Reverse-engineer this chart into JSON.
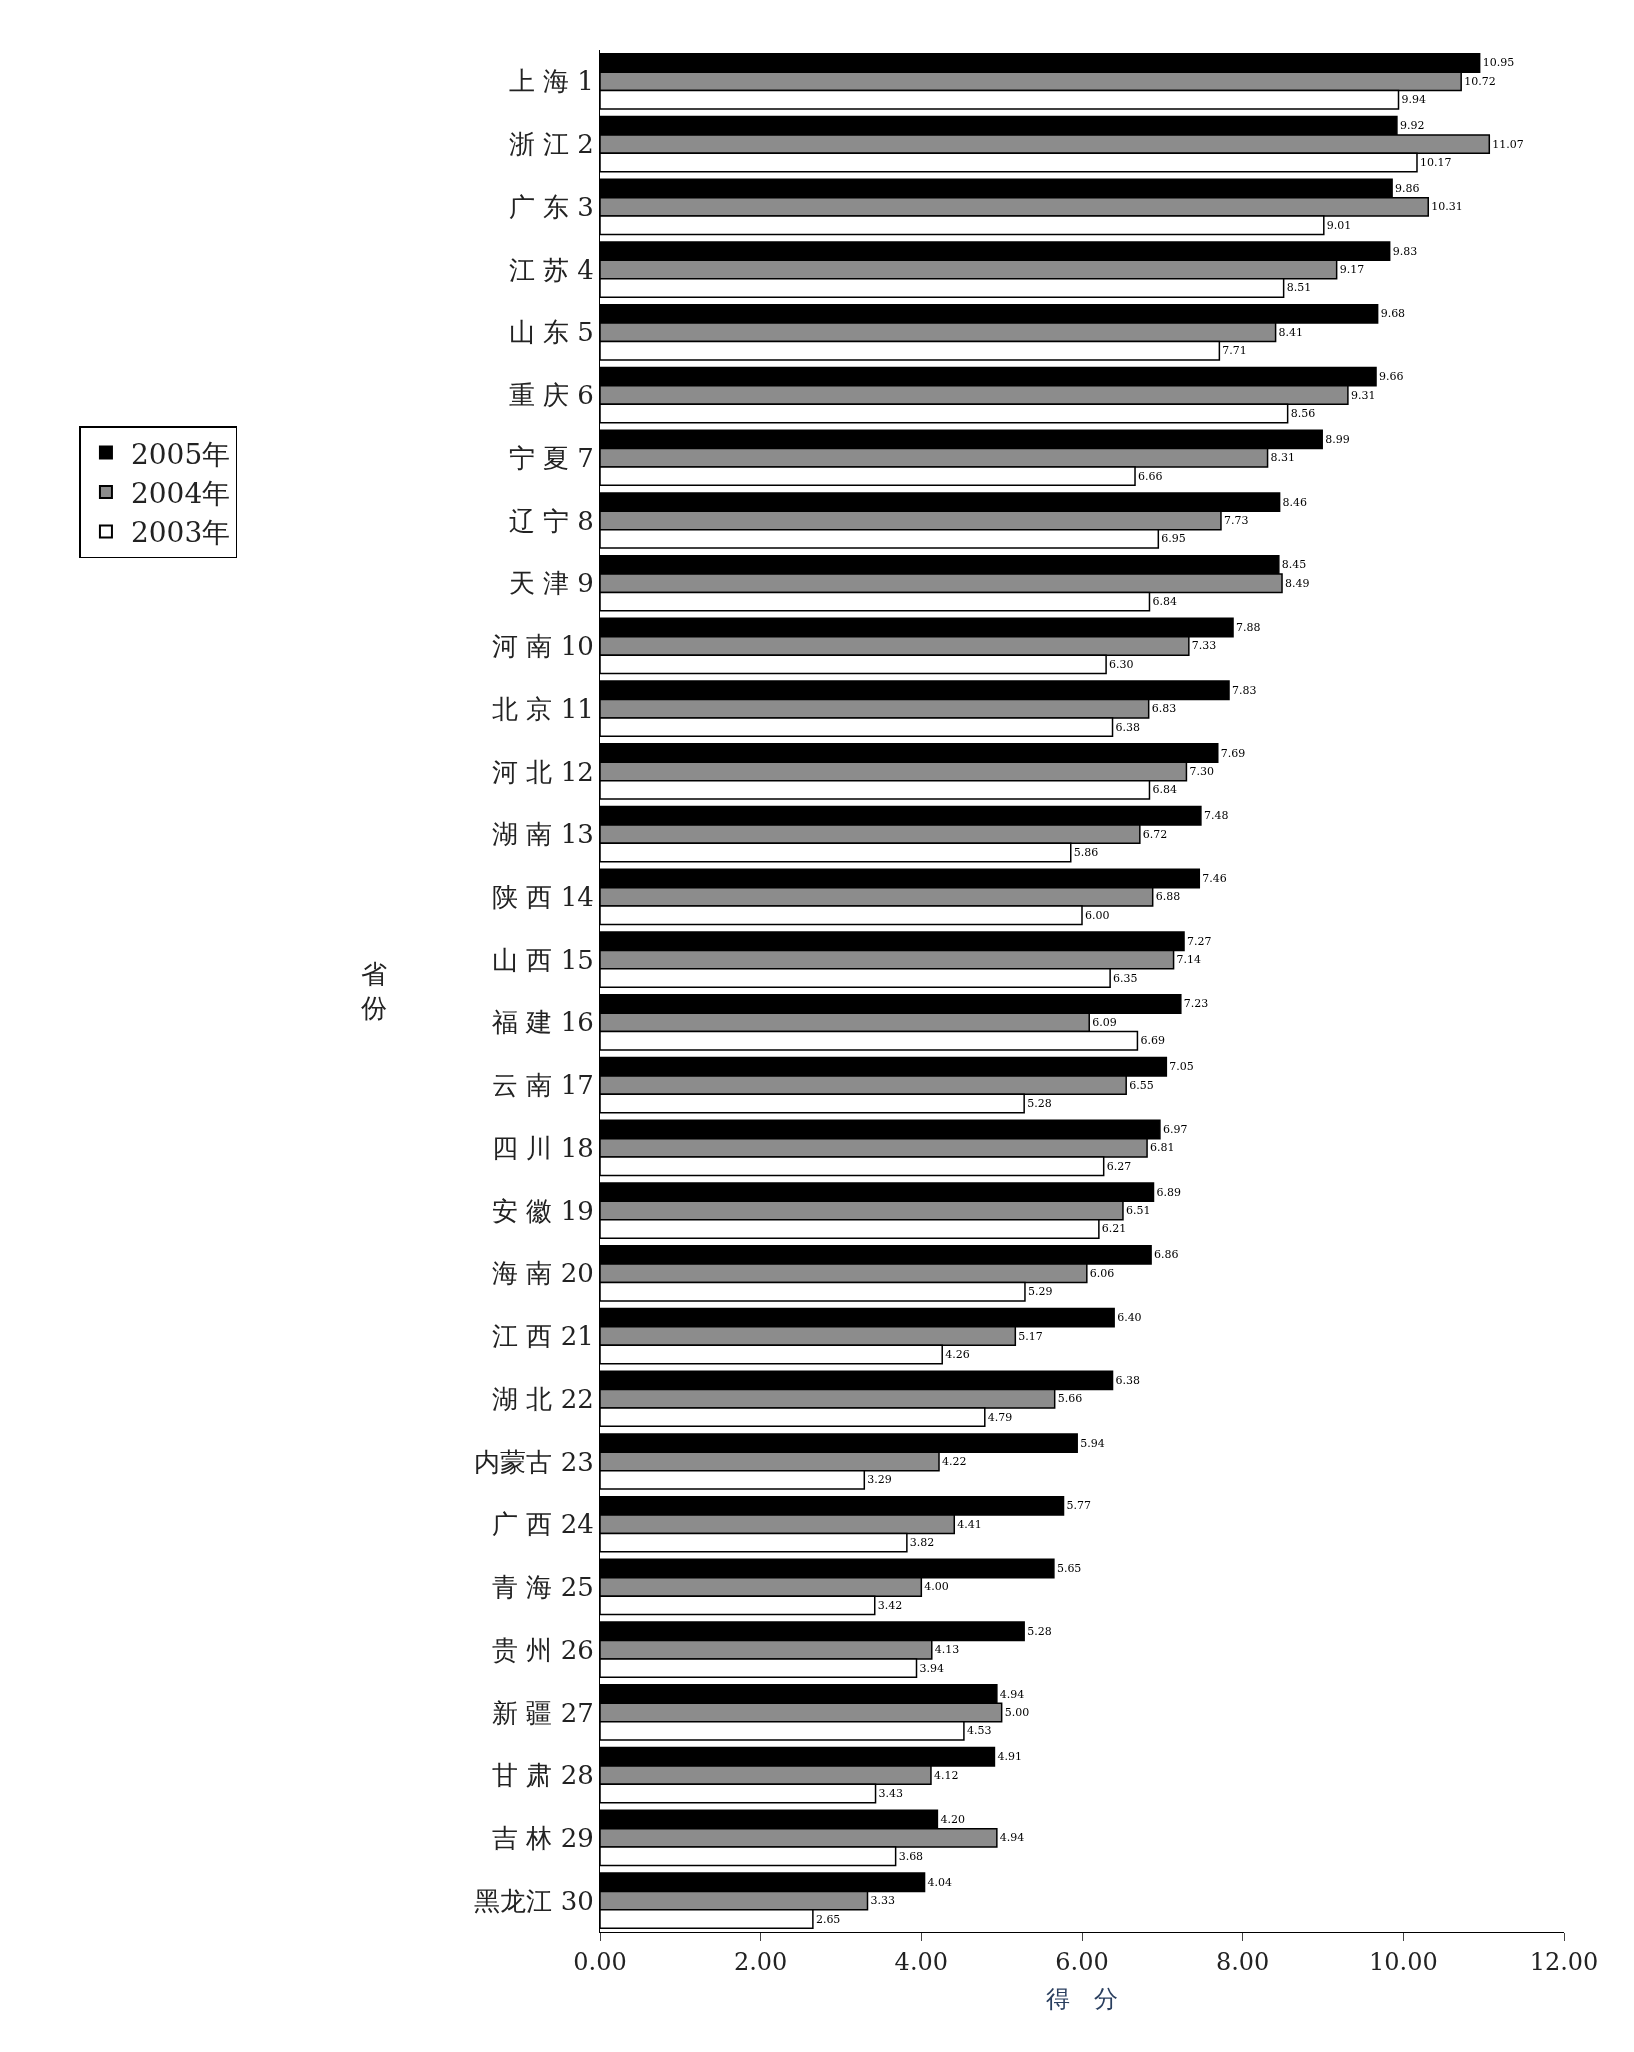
{
  "chart_data": {
    "type": "bar",
    "orientation": "horizontal",
    "xlabel": "得　分",
    "ylabel": "省份",
    "categories": [
      "上 海 1",
      "浙 江 2",
      "广 东 3",
      "江 苏 4",
      "山 东 5",
      "重 庆 6",
      "宁 夏 7",
      "辽 宁 8",
      "天 津 9",
      "河 南 10",
      "北 京 11",
      "河 北 12",
      "湖 南 13",
      "陕 西 14",
      "山 西 15",
      "福 建 16",
      "云 南 17",
      "四 川 18",
      "安 徽 19",
      "海 南 20",
      "江 西 21",
      "湖 北 22",
      "内蒙古 23",
      "广 西 24",
      "青 海 25",
      "贵 州 26",
      "新 疆 27",
      "甘 肃 28",
      "吉 林 29",
      "黑龙江 30"
    ],
    "series": [
      {
        "name": "2005年",
        "color": "#000000",
        "values": [
          10.95,
          9.92,
          9.86,
          9.83,
          9.68,
          9.66,
          8.99,
          8.46,
          8.45,
          7.88,
          7.83,
          7.69,
          7.48,
          7.46,
          7.27,
          7.23,
          7.05,
          6.97,
          6.89,
          6.86,
          6.4,
          6.38,
          5.94,
          5.77,
          5.65,
          5.28,
          4.94,
          4.91,
          4.2,
          4.04
        ],
        "value_labels": [
          "10.95",
          "9.92",
          "9.86",
          "9.83",
          "9.68",
          "9.66",
          "8.99",
          "8.46",
          "8.45",
          "7.88",
          "7.83",
          "7.69",
          "7.48",
          "7.46",
          "7.27",
          "7.23",
          "7.05",
          "6.97",
          "6.89",
          "6.86",
          "6.40",
          "6.38",
          "5.94",
          "5.77",
          "5.65",
          "5.28",
          "4.94",
          "4.91",
          "4.20",
          "4.04"
        ]
      },
      {
        "name": "2004年",
        "color": "#8c8c8c",
        "values": [
          10.72,
          11.07,
          10.31,
          9.17,
          8.41,
          9.31,
          8.31,
          7.73,
          8.49,
          7.33,
          6.83,
          7.3,
          6.72,
          6.88,
          7.14,
          6.09,
          6.55,
          6.81,
          6.51,
          6.06,
          5.17,
          5.66,
          4.22,
          4.41,
          4.0,
          4.13,
          5.0,
          4.12,
          4.94,
          3.33
        ],
        "value_labels": [
          "10.72",
          "11.07",
          "10.31",
          "9.17",
          "8.41",
          "9.31",
          "8.31",
          "7.73",
          "8.49",
          "7.33",
          "6.83",
          "7.30",
          "6.72",
          "6.88",
          "7.14",
          "6.09",
          "6.55",
          "6.81",
          "6.51",
          "6.06",
          "5.17",
          "5.66",
          "4.22",
          "4.41",
          "4.00",
          "4.13",
          "5.00",
          "4.12",
          "4.94",
          "3.33"
        ]
      },
      {
        "name": "2003年",
        "color": "#ffffff",
        "values": [
          9.94,
          10.17,
          9.01,
          8.51,
          7.71,
          8.56,
          6.66,
          6.95,
          6.84,
          6.3,
          6.38,
          6.84,
          5.86,
          6.0,
          6.35,
          6.69,
          5.28,
          6.27,
          6.21,
          5.29,
          4.26,
          4.79,
          3.29,
          3.82,
          3.42,
          3.94,
          4.53,
          3.43,
          3.68,
          2.65
        ],
        "value_labels": [
          "9.94",
          "10.17",
          "9.01",
          "8.51",
          "7.71",
          "8.56",
          "6.66",
          "6.95",
          "6.84",
          "6.30",
          "6.38",
          "6.84",
          "5.86",
          "6.00",
          "6.35",
          "6.69",
          "5.28",
          "6.27",
          "6.21",
          "5.29",
          "4.26",
          "4.79",
          "3.29",
          "3.82",
          "3.42",
          "3.94",
          "4.53",
          "3.43",
          "3.68",
          "2.65"
        ]
      }
    ],
    "xlim": [
      0,
      12
    ],
    "xticks": [
      {
        "value": 0,
        "label": "0.00"
      },
      {
        "value": 2,
        "label": "2.00"
      },
      {
        "value": 4,
        "label": "4.00"
      },
      {
        "value": 6,
        "label": "6.00"
      },
      {
        "value": 8,
        "label": "8.00"
      },
      {
        "value": 10,
        "label": "10.00"
      },
      {
        "value": 12,
        "label": "12.00"
      }
    ],
    "legend": "left"
  }
}
